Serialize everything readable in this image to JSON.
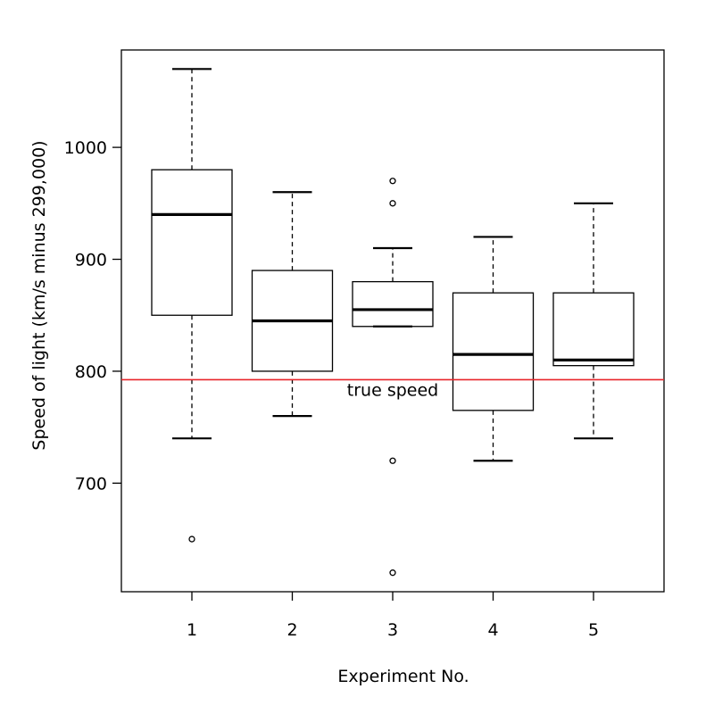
{
  "chart_data": {
    "type": "box",
    "xlabel": "Experiment No.",
    "ylabel": "Speed of light (km/s minus 299,000)",
    "categories": [
      "1",
      "2",
      "3",
      "4",
      "5"
    ],
    "ylim": [
      603,
      1087
    ],
    "yticks": [
      700,
      800,
      900,
      1000
    ],
    "boxes": [
      {
        "label": "1",
        "whisker_low": 740,
        "q1": 850,
        "median": 940,
        "q3": 980,
        "whisker_high": 1070,
        "outliers": [
          650
        ]
      },
      {
        "label": "2",
        "whisker_low": 760,
        "q1": 800,
        "median": 845,
        "q3": 890,
        "whisker_high": 960,
        "outliers": []
      },
      {
        "label": "3",
        "whisker_low": 840,
        "q1": 840,
        "median": 855,
        "q3": 880,
        "whisker_high": 910,
        "outliers": [
          620,
          720,
          950,
          970
        ]
      },
      {
        "label": "4",
        "whisker_low": 720,
        "q1": 765,
        "median": 815,
        "q3": 870,
        "whisker_high": 920,
        "outliers": []
      },
      {
        "label": "5",
        "whisker_low": 740,
        "q1": 805,
        "median": 810,
        "q3": 870,
        "whisker_high": 950,
        "outliers": []
      }
    ],
    "reference_line": {
      "value": 792.458,
      "label": "true speed",
      "color": "#e8252a"
    },
    "grid": false,
    "legend": "none"
  }
}
